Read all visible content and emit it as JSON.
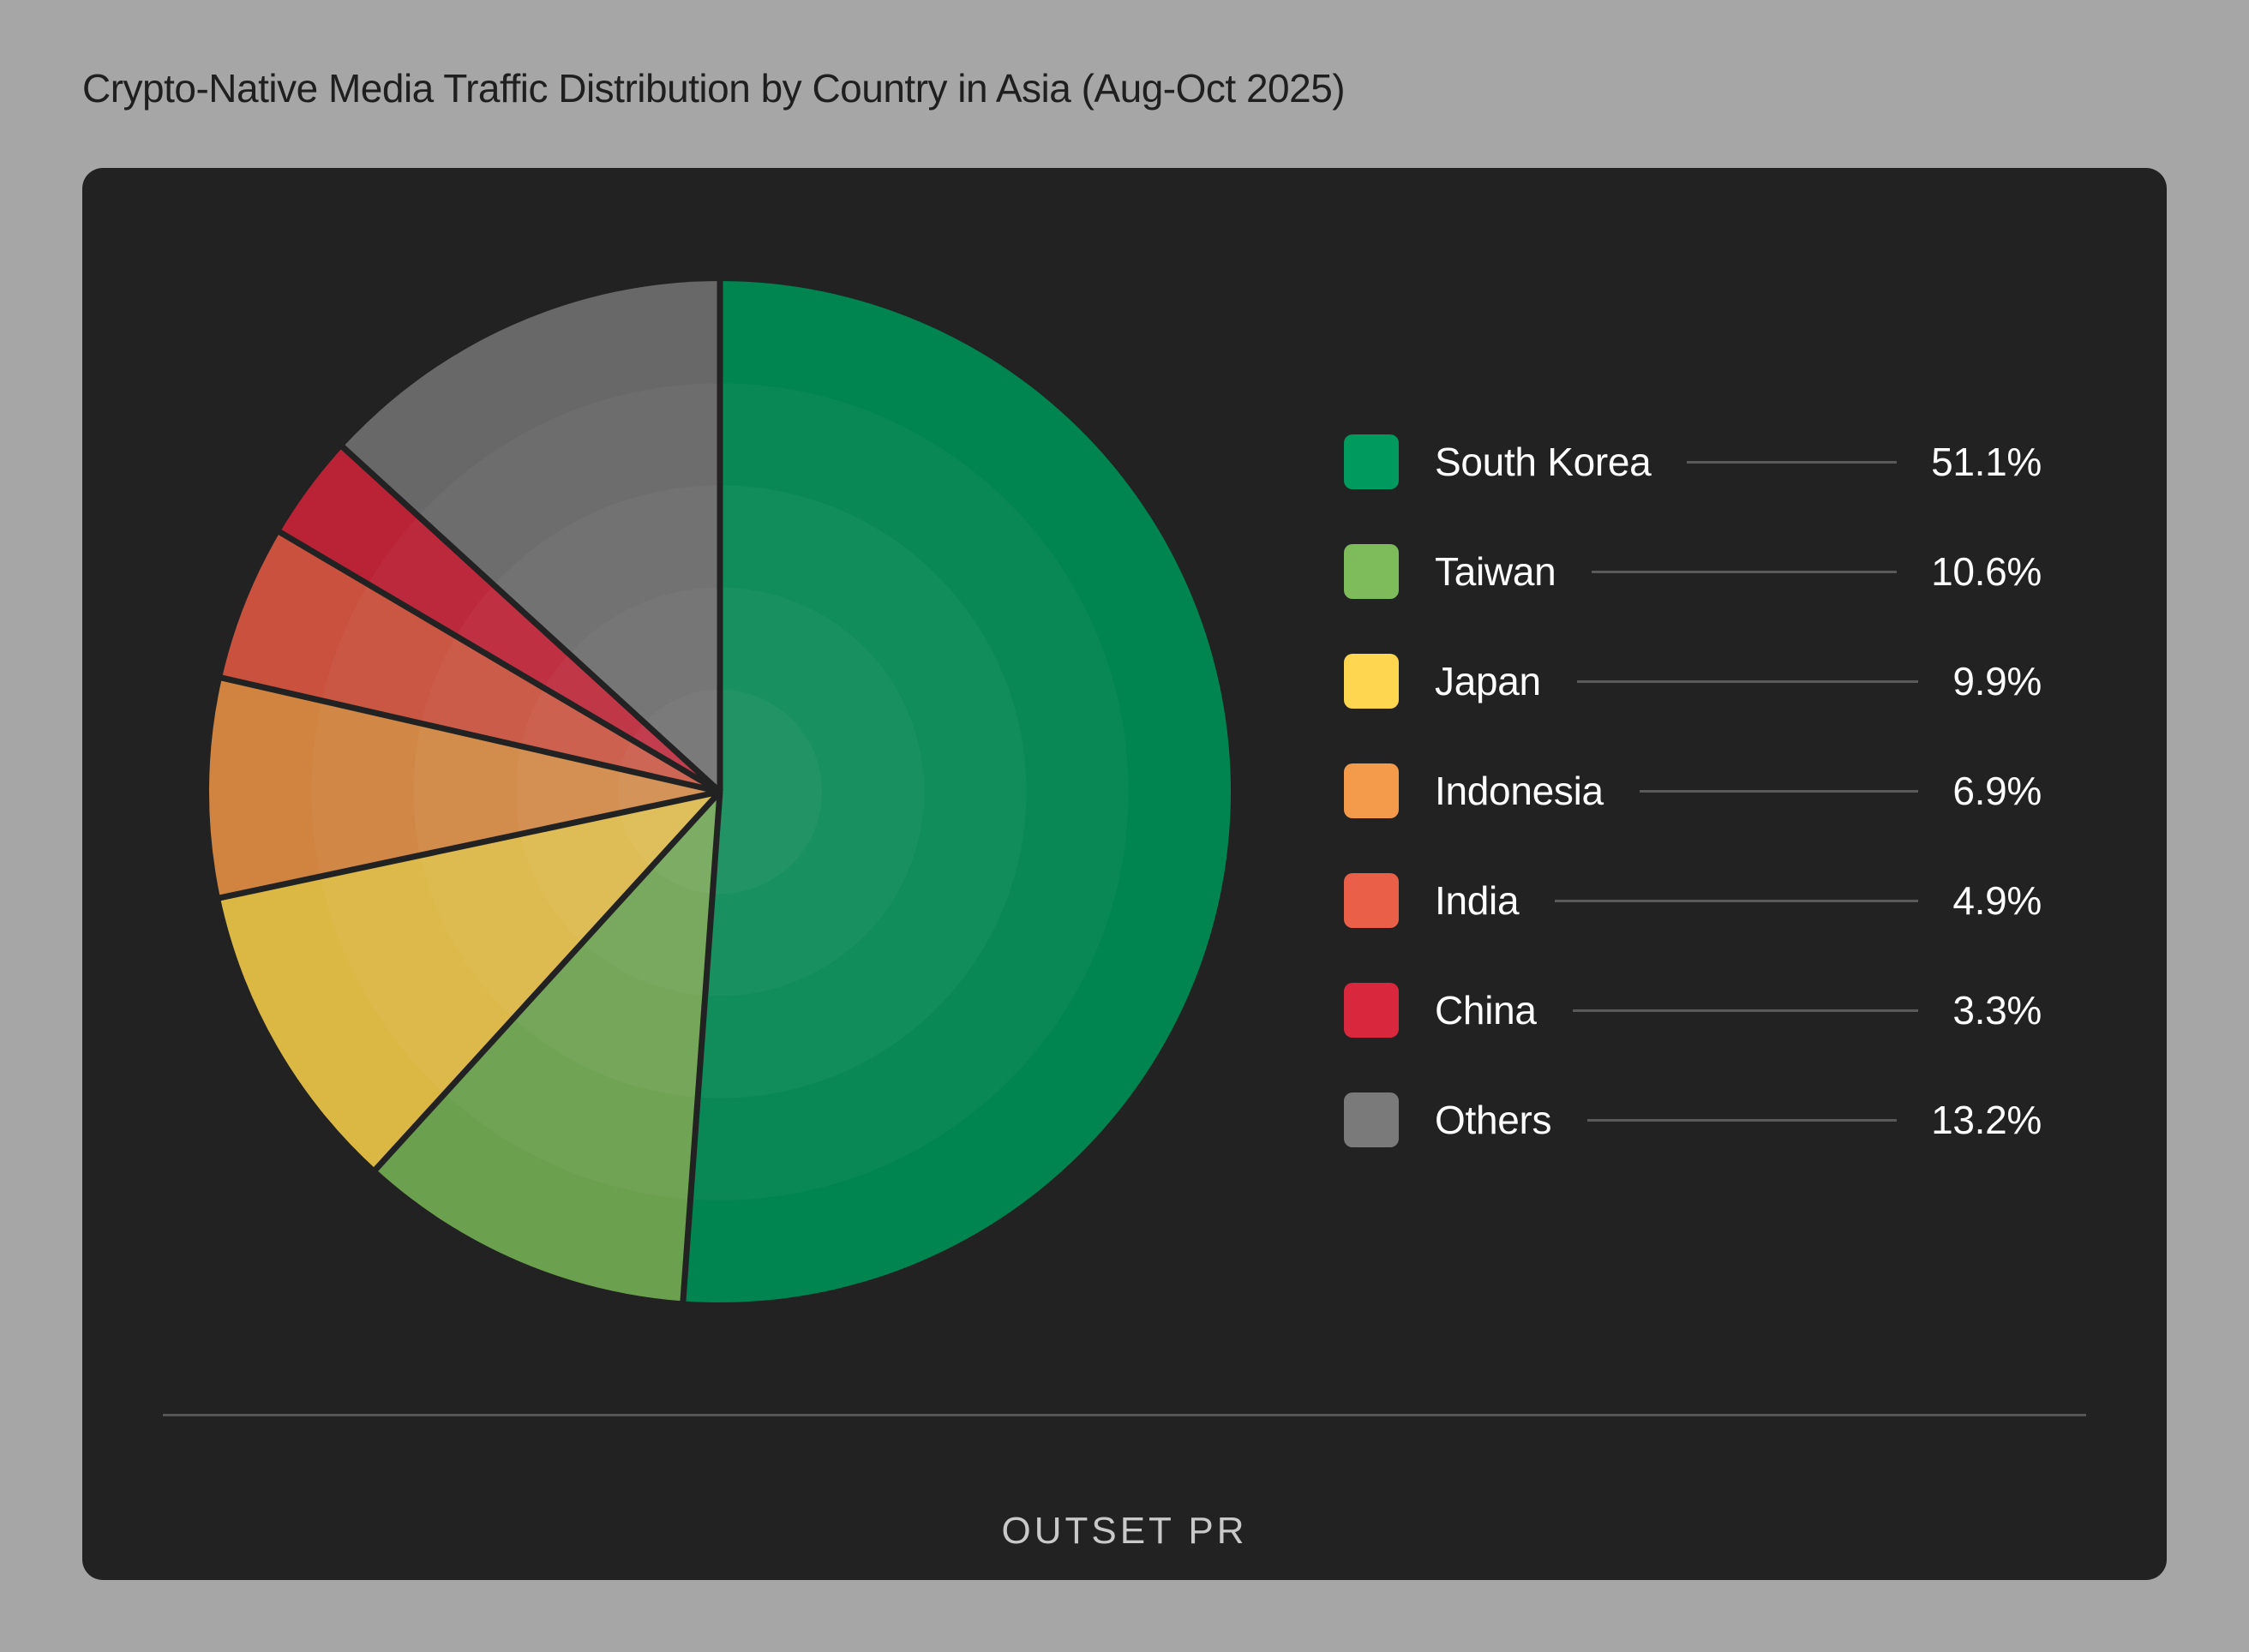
{
  "title": "Crypto-Native Media Traffic Distribution by Country in Asia (Aug-Oct 2025)",
  "chart_data": {
    "type": "pie",
    "title": "Crypto-Native Media Traffic Distribution by Country in Asia (Aug-Oct 2025)",
    "categories": [
      "South Korea",
      "Taiwan",
      "Japan",
      "Indonesia",
      "India",
      "China",
      "Others"
    ],
    "values": [
      51.1,
      10.6,
      9.9,
      6.9,
      4.9,
      3.3,
      13.2
    ],
    "value_labels": [
      "51.1%",
      "10.6%",
      "9.9%",
      "6.9%",
      "4.9%",
      "3.3%",
      "13.2%"
    ],
    "colors": [
      "#009a5e",
      "#7dbb5b",
      "#ffd650",
      "#f39a4b",
      "#ea5f47",
      "#d9283e",
      "#7a7a7a"
    ],
    "legend_position": "right",
    "start_angle": "12 o'clock, clockwise"
  },
  "legend": [
    {
      "label": "South Korea",
      "value": "51.1%"
    },
    {
      "label": "Taiwan",
      "value": "10.6%"
    },
    {
      "label": "Japan",
      "value": "9.9%"
    },
    {
      "label": "Indonesia",
      "value": "6.9%"
    },
    {
      "label": "India",
      "value": "4.9%"
    },
    {
      "label": "China",
      "value": "3.3%"
    },
    {
      "label": "Others",
      "value": "13.2%"
    }
  ],
  "brand": "OUTSET PR"
}
